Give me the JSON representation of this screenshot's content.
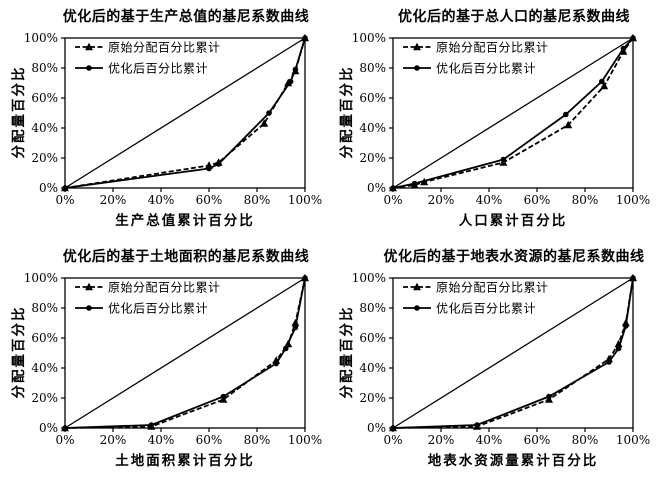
{
  "page": {
    "background": "#ffffff",
    "ink": "#000000"
  },
  "chart_data": [
    {
      "type": "line",
      "title": "优化后的基于生产总值的基尼系数曲线",
      "xlabel": "生产总值累计百分比",
      "ylabel": "分配量百分比",
      "xlim": [
        0,
        100
      ],
      "ylim": [
        0,
        100
      ],
      "x_ticks": [
        "0%",
        "20%",
        "40%",
        "60%",
        "80%",
        "100%"
      ],
      "y_ticks": [
        "0%",
        "20%",
        "40%",
        "60%",
        "80%",
        "100%"
      ],
      "grid": false,
      "legend_position": "top-left-inside",
      "equality_line": [
        [
          0,
          0
        ],
        [
          100,
          100
        ]
      ],
      "series": [
        {
          "name": "原始分配百分比累计",
          "style": "dashed",
          "marker": "triangle",
          "points": [
            [
              0,
              0
            ],
            [
              60,
              15
            ],
            [
              64,
              17
            ],
            [
              83,
              43
            ],
            [
              93,
              70
            ],
            [
              96,
              78
            ],
            [
              100,
              100
            ]
          ]
        },
        {
          "name": "优化后百分比累计",
          "style": "solid",
          "marker": "circle",
          "points": [
            [
              0,
              0
            ],
            [
              60,
              13
            ],
            [
              64,
              16
            ],
            [
              85,
              50
            ],
            [
              94,
              71
            ],
            [
              96,
              79
            ],
            [
              100,
              100
            ]
          ]
        }
      ]
    },
    {
      "type": "line",
      "title": "优化后的基于总人口的基尼系数曲线",
      "xlabel": "人口累计百分比",
      "ylabel": "分配量百分比",
      "xlim": [
        0,
        100
      ],
      "ylim": [
        0,
        100
      ],
      "x_ticks": [
        "0%",
        "20%",
        "40%",
        "60%",
        "80%",
        "100%"
      ],
      "y_ticks": [
        "0%",
        "20%",
        "40%",
        "60%",
        "80%",
        "100%"
      ],
      "grid": false,
      "legend_position": "top-left-inside",
      "equality_line": [
        [
          0,
          0
        ],
        [
          100,
          100
        ]
      ],
      "series": [
        {
          "name": "原始分配百分比累计",
          "style": "dashed",
          "marker": "triangle",
          "points": [
            [
              0,
              0
            ],
            [
              9,
              2
            ],
            [
              13,
              4
            ],
            [
              46,
              17
            ],
            [
              73,
              42
            ],
            [
              88,
              68
            ],
            [
              96,
              91
            ],
            [
              100,
              100
            ]
          ]
        },
        {
          "name": "优化后百分比累计",
          "style": "solid",
          "marker": "circle",
          "points": [
            [
              0,
              0
            ],
            [
              9,
              3
            ],
            [
              46,
              19
            ],
            [
              72,
              49
            ],
            [
              87,
              71
            ],
            [
              96,
              93
            ],
            [
              100,
              100
            ]
          ]
        }
      ]
    },
    {
      "type": "line",
      "title": "优化后的基于土地面积的基尼系数曲线",
      "xlabel": "土地面积累计百分比",
      "ylabel": "分配量百分比",
      "xlim": [
        0,
        100
      ],
      "ylim": [
        0,
        100
      ],
      "x_ticks": [
        "0%",
        "20%",
        "40%",
        "60%",
        "80%",
        "100%"
      ],
      "y_ticks": [
        "0%",
        "20%",
        "40%",
        "60%",
        "80%",
        "100%"
      ],
      "grid": false,
      "legend_position": "top-left-inside",
      "equality_line": [
        [
          0,
          0
        ],
        [
          100,
          100
        ]
      ],
      "series": [
        {
          "name": "原始分配百分比累计",
          "style": "dashed",
          "marker": "triangle",
          "points": [
            [
              0,
              0
            ],
            [
              36,
              1
            ],
            [
              66,
              19
            ],
            [
              88,
              45
            ],
            [
              93,
              56
            ],
            [
              96,
              70
            ],
            [
              100,
              100
            ]
          ]
        },
        {
          "name": "优化后百分比累计",
          "style": "solid",
          "marker": "circle",
          "points": [
            [
              0,
              0
            ],
            [
              36,
              2
            ],
            [
              66,
              21
            ],
            [
              88,
              43
            ],
            [
              92,
              53
            ],
            [
              96,
              67
            ],
            [
              100,
              100
            ]
          ]
        }
      ]
    },
    {
      "type": "line",
      "title": "优化后的基于地表水资源的基尼系数曲线",
      "xlabel": "地表水资源量累计百分比",
      "ylabel": "分配量百分比",
      "xlim": [
        0,
        100
      ],
      "ylim": [
        0,
        100
      ],
      "x_ticks": [
        "0%",
        "20%",
        "40%",
        "60%",
        "80%",
        "100%"
      ],
      "y_ticks": [
        "0%",
        "20%",
        "40%",
        "60%",
        "80%",
        "100%"
      ],
      "grid": false,
      "legend_position": "top-left-inside",
      "equality_line": [
        [
          0,
          0
        ],
        [
          100,
          100
        ]
      ],
      "series": [
        {
          "name": "原始分配百分比累计",
          "style": "dashed",
          "marker": "triangle",
          "points": [
            [
              0,
              0
            ],
            [
              35,
              1
            ],
            [
              65,
              19
            ],
            [
              90,
              46
            ],
            [
              94,
              56
            ],
            [
              97,
              70
            ],
            [
              100,
              100
            ]
          ]
        },
        {
          "name": "优化后百分比累计",
          "style": "solid",
          "marker": "circle",
          "points": [
            [
              0,
              0
            ],
            [
              35,
              2
            ],
            [
              65,
              21
            ],
            [
              90,
              44
            ],
            [
              94,
              53
            ],
            [
              97,
              68
            ],
            [
              100,
              100
            ]
          ]
        }
      ]
    }
  ]
}
